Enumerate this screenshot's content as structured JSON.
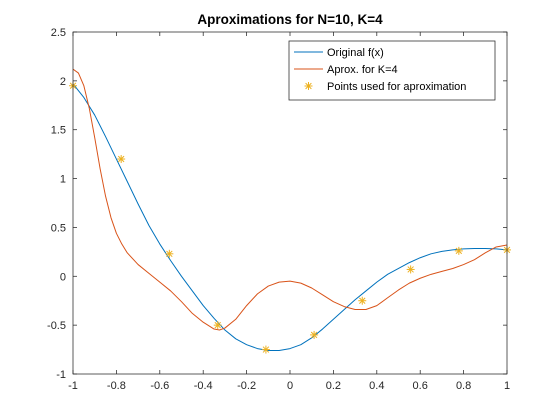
{
  "chart_data": {
    "type": "line",
    "title": "Aproximations for N=10, K=4",
    "xlabel": "",
    "ylabel": "",
    "xlim": [
      -1,
      1
    ],
    "ylim": [
      -1,
      2.5
    ],
    "xticks": [
      -1,
      -0.8,
      -0.6,
      -0.4,
      -0.2,
      0,
      0.2,
      0.4,
      0.6,
      0.8,
      1
    ],
    "xtick_labels": [
      "-1",
      "-0.8",
      "-0.6",
      "-0.4",
      "-0.2",
      "0",
      "0.2",
      "0.4",
      "0.6",
      "0.8",
      "1"
    ],
    "yticks": [
      -1,
      -0.5,
      0,
      0.5,
      1,
      1.5,
      2,
      2.5
    ],
    "ytick_labels": [
      "-1",
      "-0.5",
      "0",
      "0.5",
      "1",
      "1.5",
      "2",
      "2.5"
    ],
    "grid": false,
    "legend_position": "top-right",
    "series": [
      {
        "name": "Original f(x)",
        "style": "line",
        "color": "#0072BD",
        "x": [
          -1,
          -0.95,
          -0.9,
          -0.85,
          -0.8,
          -0.75,
          -0.7,
          -0.65,
          -0.6,
          -0.55,
          -0.5,
          -0.45,
          -0.4,
          -0.35,
          -0.3,
          -0.25,
          -0.2,
          -0.15,
          -0.1,
          -0.05,
          0,
          0.05,
          0.1,
          0.15,
          0.2,
          0.25,
          0.3,
          0.35,
          0.4,
          0.45,
          0.5,
          0.55,
          0.6,
          0.65,
          0.7,
          0.75,
          0.8,
          0.85,
          0.9,
          0.95,
          1
        ],
        "y": [
          1.97,
          1.83,
          1.65,
          1.43,
          1.2,
          0.97,
          0.74,
          0.52,
          0.33,
          0.16,
          0.0,
          -0.15,
          -0.3,
          -0.43,
          -0.55,
          -0.64,
          -0.7,
          -0.74,
          -0.76,
          -0.76,
          -0.74,
          -0.7,
          -0.63,
          -0.54,
          -0.44,
          -0.34,
          -0.24,
          -0.15,
          -0.06,
          0.02,
          0.08,
          0.14,
          0.19,
          0.23,
          0.255,
          0.27,
          0.28,
          0.285,
          0.285,
          0.28,
          0.27
        ]
      },
      {
        "name": "Aprox. for K=4",
        "style": "line",
        "color": "#D95319",
        "x": [
          -1,
          -0.975,
          -0.95,
          -0.925,
          -0.9,
          -0.875,
          -0.85,
          -0.825,
          -0.8,
          -0.775,
          -0.75,
          -0.7,
          -0.65,
          -0.6,
          -0.55,
          -0.5,
          -0.45,
          -0.4,
          -0.35,
          -0.325,
          -0.3,
          -0.25,
          -0.2,
          -0.15,
          -0.1,
          -0.05,
          0,
          0.05,
          0.1,
          0.15,
          0.2,
          0.25,
          0.3,
          0.35,
          0.4,
          0.45,
          0.5,
          0.55,
          0.6,
          0.65,
          0.7,
          0.75,
          0.8,
          0.85,
          0.9,
          0.95,
          1
        ],
        "y": [
          2.12,
          2.08,
          1.95,
          1.72,
          1.42,
          1.1,
          0.82,
          0.6,
          0.44,
          0.33,
          0.24,
          0.12,
          0.03,
          -0.06,
          -0.15,
          -0.26,
          -0.38,
          -0.47,
          -0.54,
          -0.55,
          -0.53,
          -0.44,
          -0.3,
          -0.18,
          -0.1,
          -0.06,
          -0.05,
          -0.07,
          -0.12,
          -0.19,
          -0.26,
          -0.31,
          -0.34,
          -0.34,
          -0.3,
          -0.22,
          -0.14,
          -0.07,
          -0.02,
          0.02,
          0.05,
          0.08,
          0.12,
          0.17,
          0.24,
          0.3,
          0.32
        ]
      },
      {
        "name": "Points used for aproximation",
        "style": "marker",
        "color": "#EDB120",
        "marker": "*",
        "x": [
          -1,
          -0.778,
          -0.556,
          -0.333,
          -0.111,
          0.111,
          0.333,
          0.556,
          0.778,
          1
        ],
        "y": [
          1.95,
          1.2,
          0.23,
          -0.5,
          -0.75,
          -0.6,
          -0.25,
          0.07,
          0.26,
          0.27
        ]
      }
    ]
  }
}
